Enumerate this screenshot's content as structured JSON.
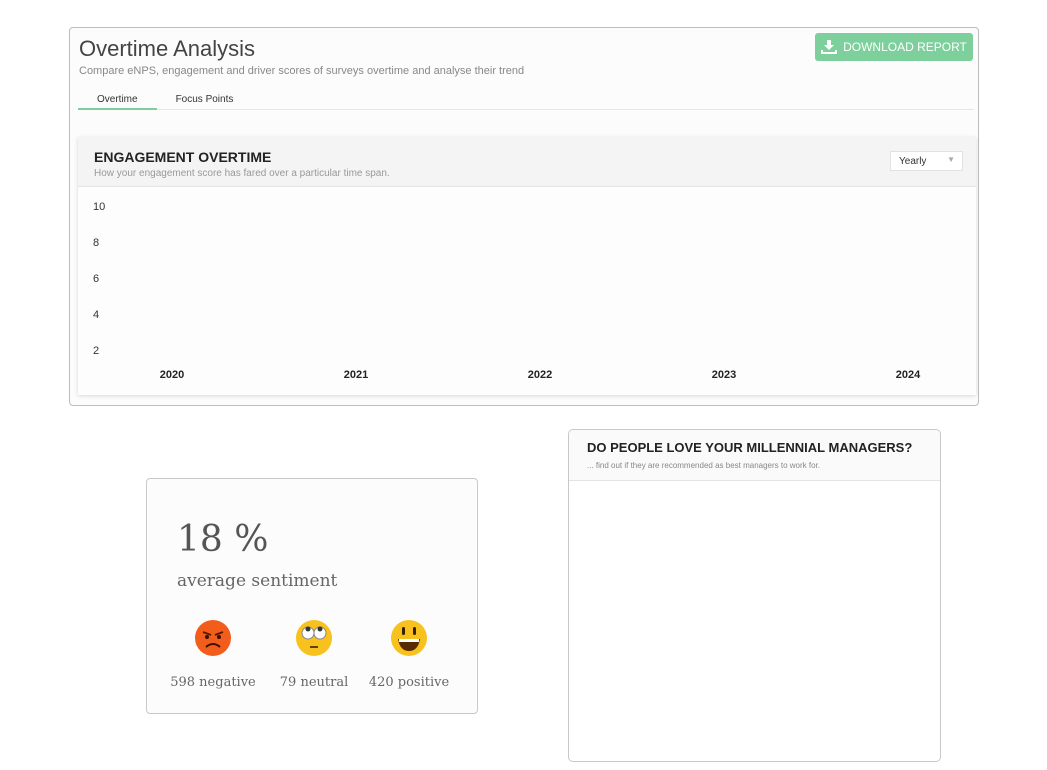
{
  "header": {
    "title": "Overtime Analysis",
    "subtitle": "Compare eNPS, engagement and driver scores of surveys overtime and analyse their trend",
    "download_label": "DOWNLOAD REPORT",
    "accent": "#7dcf9c"
  },
  "tabs": [
    {
      "label": "Overtime",
      "active": true
    },
    {
      "label": "Focus Points",
      "active": false
    }
  ],
  "engagement": {
    "title": "ENGAGEMENT OVERTIME",
    "subtitle": "How your engagement score has fared over a particular time span.",
    "period": "Yearly"
  },
  "chart_data": {
    "type": "line",
    "x": [
      "2020",
      "2021",
      "2022",
      "2023",
      "2024"
    ],
    "yticks": [
      "2",
      "4",
      "6",
      "8",
      "10"
    ],
    "series": [],
    "ylim": [
      2,
      10
    ],
    "grid": false
  },
  "sentiment": {
    "value": "18 %",
    "label": "average sentiment",
    "items": [
      {
        "icon": "angry-face-icon",
        "label": "598 negative"
      },
      {
        "icon": "eye-roll-face-icon",
        "label": "79 neutral"
      },
      {
        "icon": "grinning-face-icon",
        "label": "420 positive"
      }
    ]
  },
  "managers": {
    "title": "DO PEOPLE LOVE YOUR MILLENNIAL MANAGERS?",
    "subtitle": "... find out if they are recommended as best managers to work for."
  }
}
